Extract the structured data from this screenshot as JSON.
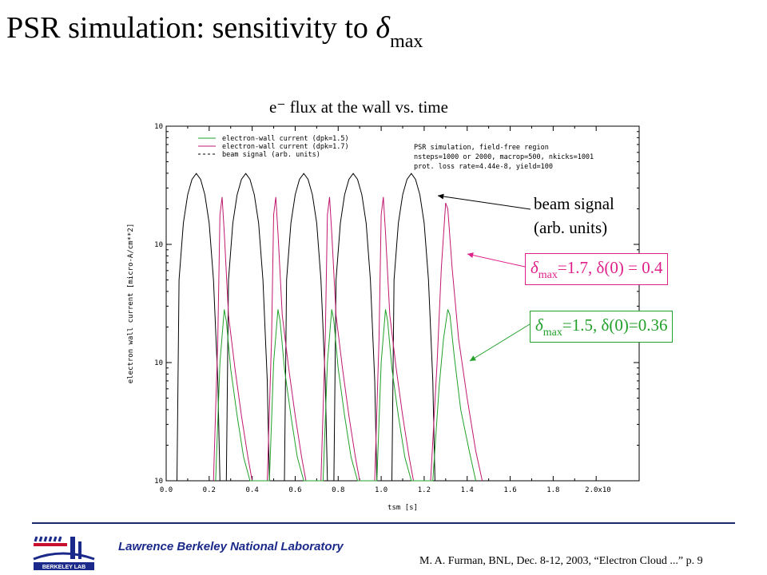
{
  "slide": {
    "title_main": "PSR simulation: sensitivity to ",
    "title_symbol": "δ",
    "title_sub": "max",
    "chart_subtitle": "e⁻ flux at the wall vs. time",
    "annotations": {
      "beam_line1": "beam signal",
      "beam_line2": "(arb. units)",
      "box17": {
        "symbol": "δ",
        "sub": "max",
        "text": "=1.7, δ(0) = 0.4",
        "color": "#e0208a"
      },
      "box15": {
        "symbol": "δ",
        "sub": "max",
        "text": "=1.5, δ(0)=0.36",
        "color": "#22a02a"
      }
    },
    "footer": {
      "lab": "Lawrence Berkeley National Laboratory",
      "citation": "M. A. Furman, BNL, Dec. 8-12, 2003, “Electron Cloud ...”  p. 9",
      "logo_text": "BERKELEY LAB"
    }
  },
  "chart_data": {
    "type": "line",
    "xlabel": "tsm [s]",
    "ylabel": "electron wall current [micro-A/cm**2]",
    "x_ticks": [
      "0.0",
      "0.2",
      "0.4",
      "0.6",
      "0.8",
      "1.0",
      "1.2",
      "1.4",
      "1.6",
      "1.8",
      "2.0x10"
    ],
    "y_ticks": [
      "10",
      "10",
      "10",
      "10"
    ],
    "xlim": [
      0,
      2.2
    ],
    "ylim_decades": [
      0,
      3
    ],
    "y_scale": "log",
    "legend_position": "top-left",
    "legend": [
      "electron-wall current (dpk=1.5)",
      "electron-wall current (dpk=1.7)",
      "beam signal (arb. units)"
    ],
    "info_text": [
      "PSR simulation, field-free region",
      "nsteps=1000 or 2000, macrop=500, nkicks=1001",
      "prot. loss rate=4.44e-8, yield=100"
    ],
    "colors": {
      "dpk15": "#22a02a",
      "dpk17": "#c01870",
      "beam": "#000000"
    },
    "series": [
      {
        "name": "beam signal (arb. units)",
        "x": [
          0.05,
          0.06,
          0.08,
          0.1,
          0.12,
          0.14,
          0.16,
          0.18,
          0.2,
          0.22,
          0.24,
          0.25,
          0.28,
          0.29,
          0.31,
          0.33,
          0.35,
          0.37,
          0.39,
          0.41,
          0.43,
          0.45,
          0.47,
          0.48,
          0.55,
          0.56,
          0.58,
          0.6,
          0.62,
          0.64,
          0.66,
          0.68,
          0.7,
          0.72,
          0.74,
          0.75,
          0.78,
          0.79,
          0.81,
          0.83,
          0.85,
          0.87,
          0.89,
          0.91,
          0.93,
          0.95,
          0.97,
          0.98,
          1.05,
          1.06,
          1.08,
          1.1,
          1.12,
          1.14,
          1.16,
          1.18,
          1.2,
          1.22,
          1.24,
          1.25
        ],
        "y": [
          0.0,
          1.7,
          2.18,
          2.42,
          2.55,
          2.6,
          2.55,
          2.42,
          2.18,
          1.7,
          0.85,
          0.0,
          0.0,
          1.7,
          2.18,
          2.42,
          2.55,
          2.6,
          2.55,
          2.42,
          2.18,
          1.7,
          0.85,
          0.0,
          0.0,
          1.7,
          2.18,
          2.42,
          2.55,
          2.6,
          2.55,
          2.42,
          2.18,
          1.7,
          0.85,
          0.0,
          0.0,
          1.7,
          2.18,
          2.42,
          2.55,
          2.6,
          2.55,
          2.42,
          2.18,
          1.7,
          0.85,
          0.0,
          0.0,
          1.7,
          2.18,
          2.42,
          2.55,
          2.6,
          2.55,
          2.42,
          2.18,
          1.7,
          0.85,
          0.0
        ]
      },
      {
        "name": "electron-wall current (dpk=1.7)",
        "x": [
          0.22,
          0.24,
          0.25,
          0.26,
          0.27,
          0.29,
          0.32,
          0.35,
          0.38,
          0.4,
          0.47,
          0.49,
          0.5,
          0.51,
          0.52,
          0.54,
          0.57,
          0.6,
          0.63,
          0.65,
          0.72,
          0.74,
          0.75,
          0.76,
          0.77,
          0.79,
          0.82,
          0.85,
          0.88,
          0.9,
          0.97,
          0.99,
          1.0,
          1.01,
          1.02,
          1.04,
          1.07,
          1.1,
          1.13,
          1.15,
          1.23,
          1.26,
          1.28,
          1.3,
          1.31,
          1.33,
          1.36,
          1.4,
          1.44,
          1.47
        ],
        "y": [
          0.0,
          1.2,
          2.25,
          2.4,
          2.1,
          1.4,
          0.95,
          0.55,
          0.2,
          0.0,
          0.0,
          1.2,
          2.25,
          2.4,
          2.1,
          1.4,
          0.95,
          0.55,
          0.2,
          0.0,
          0.0,
          1.2,
          2.25,
          2.4,
          2.1,
          1.4,
          0.95,
          0.55,
          0.2,
          0.0,
          0.0,
          1.2,
          2.25,
          2.4,
          2.1,
          1.4,
          0.95,
          0.55,
          0.2,
          0.0,
          0.0,
          1.0,
          1.8,
          2.35,
          2.3,
          1.8,
          1.2,
          0.7,
          0.25,
          0.0
        ]
      },
      {
        "name": "electron-wall current (dpk=1.5)",
        "x": [
          0.23,
          0.25,
          0.27,
          0.28,
          0.3,
          0.33,
          0.36,
          0.39,
          0.48,
          0.5,
          0.52,
          0.53,
          0.55,
          0.58,
          0.61,
          0.64,
          0.73,
          0.75,
          0.77,
          0.78,
          0.8,
          0.83,
          0.86,
          0.89,
          0.98,
          1.0,
          1.02,
          1.03,
          1.05,
          1.08,
          1.11,
          1.14,
          1.24,
          1.27,
          1.29,
          1.31,
          1.32,
          1.34,
          1.37,
          1.41,
          1.44
        ],
        "y": [
          0.0,
          1.0,
          1.45,
          1.35,
          0.95,
          0.55,
          0.2,
          0.0,
          0.0,
          1.0,
          1.45,
          1.35,
          0.95,
          0.55,
          0.2,
          0.0,
          0.0,
          1.0,
          1.45,
          1.35,
          0.95,
          0.55,
          0.2,
          0.0,
          0.0,
          1.0,
          1.45,
          1.35,
          0.95,
          0.55,
          0.2,
          0.0,
          0.0,
          0.8,
          1.2,
          1.45,
          1.4,
          1.05,
          0.6,
          0.25,
          0.0
        ]
      }
    ]
  }
}
